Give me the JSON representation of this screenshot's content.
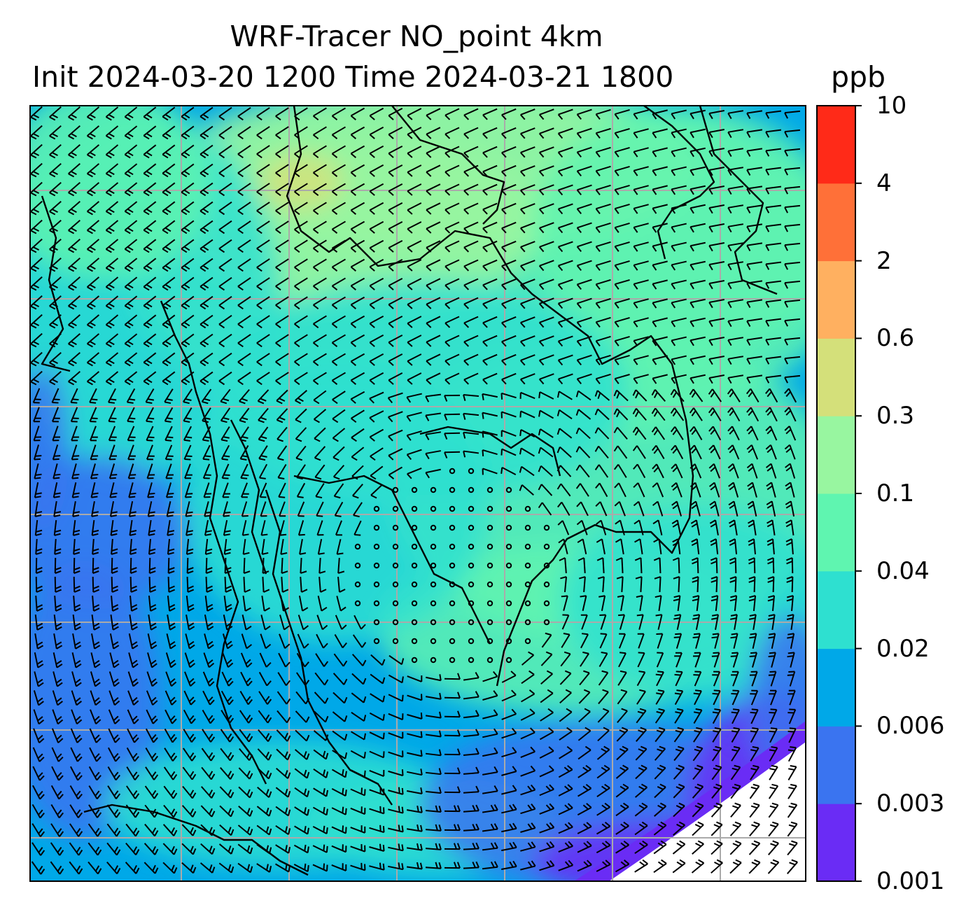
{
  "chart_data": {
    "type": "heatmap",
    "title": "WRF-Tracer NO_point 4km",
    "subtitle": "Init 2024-03-20 1200 Time 2024-03-21 1800",
    "colorbar": {
      "units": "ppb",
      "levels": [
        "0.001",
        "0.003",
        "0.006",
        "0.02",
        "0.04",
        "0.1",
        "0.3",
        "0.6",
        "2",
        "4",
        "10"
      ],
      "colors": [
        "#6a2cf5",
        "#3a74f0",
        "#00a8e8",
        "#2ee0d0",
        "#5ff5b0",
        "#98f6a0",
        "#d4e07a",
        "#ffb060",
        "#ff7038",
        "#ff2a18"
      ]
    },
    "overlays": [
      "wind barbs",
      "coastlines",
      "lat/lon gridlines"
    ],
    "grid": true
  }
}
